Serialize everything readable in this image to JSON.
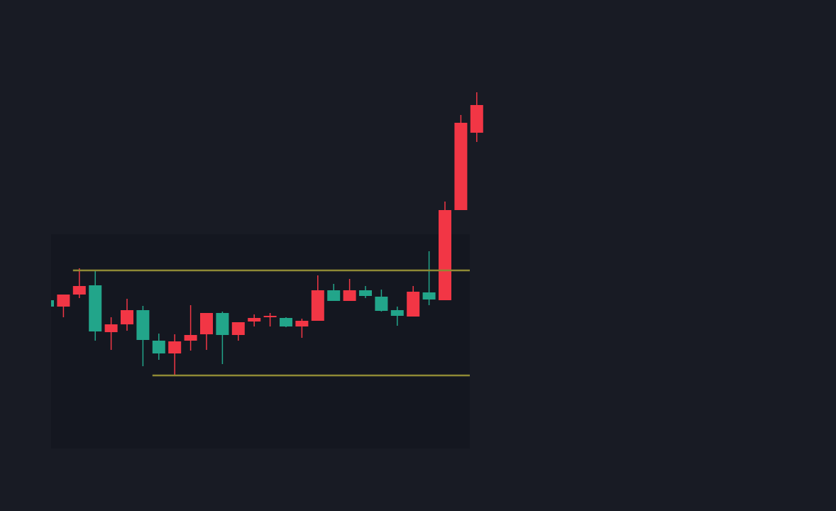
{
  "chart_data": {
    "type": "candlestick",
    "open": [
      297,
      288,
      305,
      318,
      252,
      263,
      283,
      240,
      222,
      240,
      249,
      279,
      248,
      267,
      273,
      272,
      260,
      268,
      311,
      296,
      311,
      302,
      283,
      274,
      308,
      297,
      424,
      533
    ],
    "high": [
      297,
      305,
      342,
      340,
      273,
      299,
      289,
      250,
      249,
      290,
      279,
      281,
      266,
      277,
      279,
      273,
      271,
      332,
      320,
      327,
      317,
      312,
      288,
      317,
      366,
      436,
      558,
      590
    ],
    "low": [
      288,
      273,
      300,
      240,
      227,
      254,
      204,
      213,
      190,
      226,
      227,
      207,
      240,
      260,
      260,
      259,
      244,
      268,
      296,
      296,
      300,
      281,
      261,
      274,
      290,
      297,
      424,
      520
    ],
    "close": [
      288,
      305,
      317,
      253,
      263,
      283,
      241,
      222,
      239,
      248,
      279,
      248,
      266,
      272,
      275,
      260,
      268,
      311,
      296,
      311,
      303,
      282,
      275,
      309,
      298,
      424,
      547,
      572
    ],
    "up_color": "#f23645",
    "down_color": "#22a58a",
    "levels": [
      339,
      191
    ],
    "level_color": "#8f8a35",
    "ylim": [
      0,
      720
    ]
  }
}
